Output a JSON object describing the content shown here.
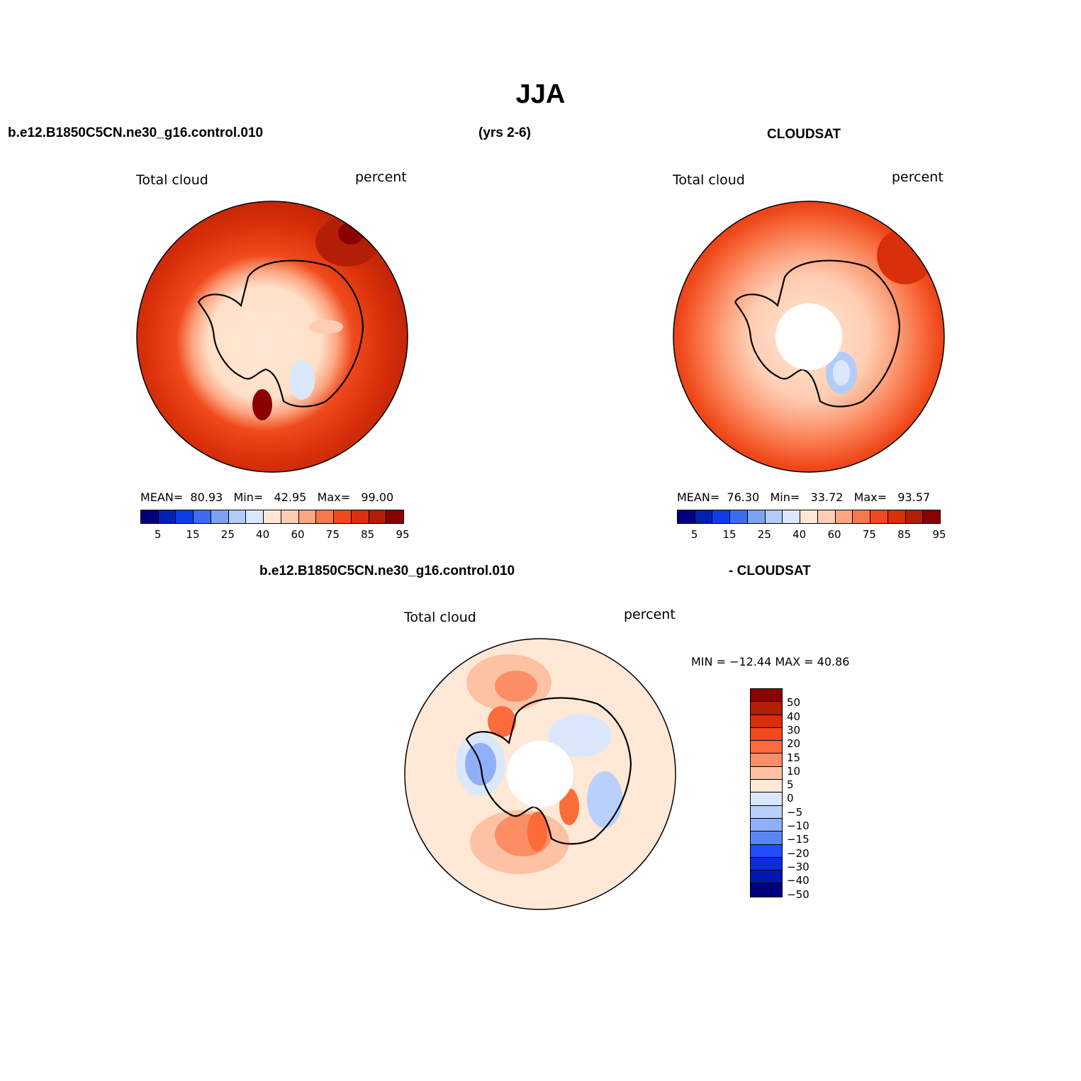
{
  "title": "JJA",
  "header": {
    "case_name": "b.e12.B1850C5CN.ne30_g16.control.010",
    "years": "(yrs 2-6)",
    "obs_name": "CLOUDSAT",
    "diff_case_name": "b.e12.B1850C5CN.ne30_g16.control.010",
    "diff_obs_name": "- CLOUDSAT"
  },
  "panels": [
    {
      "variable": "Total cloud",
      "units": "percent",
      "stats": {
        "mean_label": "MEAN=",
        "mean": "80.93",
        "min_label": "Min=",
        "min": "42.95",
        "max_label": "Max=",
        "max": "99.00"
      }
    },
    {
      "variable": "Total cloud",
      "units": "percent",
      "stats": {
        "mean_label": "MEAN=",
        "mean": "76.30",
        "min_label": "Min=",
        "min": "33.72",
        "max_label": "Max=",
        "max": "93.57"
      }
    },
    {
      "variable": "Total cloud",
      "units": "percent",
      "stats": {
        "text": "MIN = −12.44 MAX =  40.86"
      }
    }
  ],
  "colorbar_abs": {
    "colors": [
      "#00007f",
      "#0020b3",
      "#0c3de6",
      "#3b6cf2",
      "#7da2f5",
      "#b3cbf7",
      "#dbe8fb",
      "#ffe8d5",
      "#ffcdb2",
      "#fca682",
      "#f9784b",
      "#f04a1c",
      "#d92f0a",
      "#b21f05",
      "#8b0000"
    ],
    "labels": [
      "5",
      "15",
      "25",
      "40",
      "60",
      "75",
      "85",
      "95"
    ]
  },
  "colorbar_diff": {
    "colors": [
      "#8b0000",
      "#b21f05",
      "#d92f0a",
      "#f04a1c",
      "#fb6c3a",
      "#fc8e65",
      "#fdc1a3",
      "#ffe8d5",
      "#dbe8fb",
      "#b9d0fb",
      "#8fb0f8",
      "#5a86f5",
      "#1f4fff",
      "#0b2ed8",
      "#0018b0",
      "#00007f"
    ],
    "labels": [
      "50",
      "40",
      "30",
      "20",
      "15",
      "10",
      "5",
      "0",
      "−5",
      "−10",
      "−15",
      "−20",
      "−30",
      "−40",
      "−50"
    ]
  }
}
